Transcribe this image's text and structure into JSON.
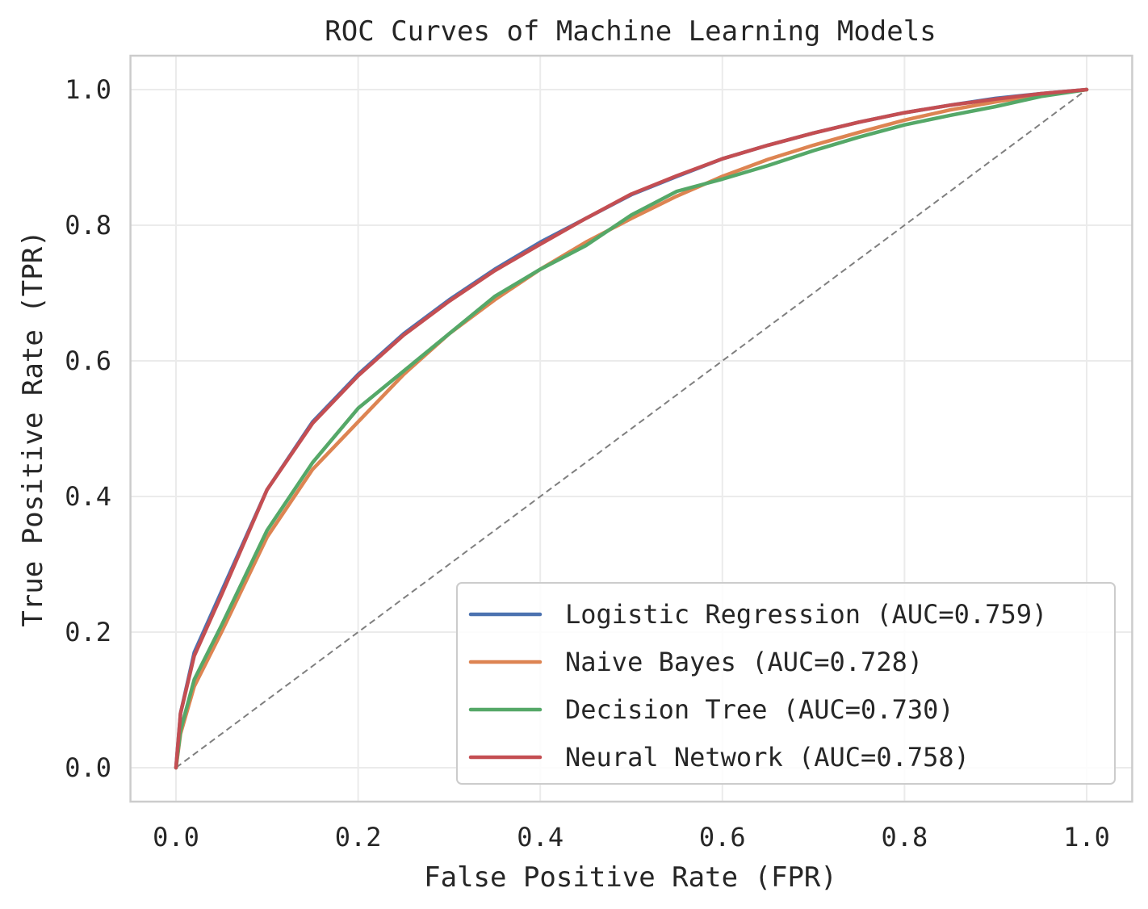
{
  "chart_data": {
    "type": "line",
    "title": "ROC Curves of Machine Learning Models",
    "xlabel": "False Positive Rate (FPR)",
    "ylabel": "True Positive Rate (TPR)",
    "xlim": [
      -0.05,
      1.05
    ],
    "ylim": [
      -0.05,
      1.05
    ],
    "grid": true,
    "legend_position": "bottom-right",
    "xticks": [
      "0.0",
      "0.2",
      "0.4",
      "0.6",
      "0.8",
      "1.0"
    ],
    "yticks": [
      "0.0",
      "0.2",
      "0.4",
      "0.6",
      "0.8",
      "1.0"
    ],
    "x": [
      0.0,
      0.005,
      0.02,
      0.05,
      0.1,
      0.15,
      0.2,
      0.25,
      0.3,
      0.35,
      0.4,
      0.45,
      0.5,
      0.55,
      0.6,
      0.65,
      0.7,
      0.75,
      0.8,
      0.85,
      0.9,
      0.95,
      1.0
    ],
    "series": [
      {
        "name": "Logistic Regression (AUC=0.759)",
        "color": "#4c72b0",
        "values": [
          0.0,
          0.08,
          0.17,
          0.26,
          0.41,
          0.51,
          0.58,
          0.64,
          0.69,
          0.735,
          0.775,
          0.81,
          0.845,
          0.872,
          0.898,
          0.918,
          0.936,
          0.952,
          0.966,
          0.977,
          0.987,
          0.994,
          1.0
        ]
      },
      {
        "name": "Naive Bayes (AUC=0.728)",
        "color": "#dd8452",
        "values": [
          0.0,
          0.05,
          0.12,
          0.2,
          0.34,
          0.44,
          0.51,
          0.58,
          0.64,
          0.69,
          0.735,
          0.775,
          0.81,
          0.843,
          0.872,
          0.897,
          0.918,
          0.937,
          0.955,
          0.97,
          0.982,
          0.992,
          1.0
        ]
      },
      {
        "name": "Decision Tree (AUC=0.730)",
        "color": "#55a868",
        "values": [
          0.0,
          0.055,
          0.13,
          0.21,
          0.35,
          0.45,
          0.53,
          0.585,
          0.64,
          0.695,
          0.735,
          0.77,
          0.815,
          0.85,
          0.868,
          0.888,
          0.91,
          0.93,
          0.948,
          0.962,
          0.975,
          0.99,
          1.0
        ]
      },
      {
        "name": "Neural Network (AUC=0.758)",
        "color": "#c44e52",
        "values": [
          0.0,
          0.08,
          0.165,
          0.255,
          0.41,
          0.508,
          0.578,
          0.638,
          0.688,
          0.733,
          0.772,
          0.81,
          0.846,
          0.873,
          0.898,
          0.918,
          0.936,
          0.952,
          0.966,
          0.977,
          0.986,
          0.994,
          1.0
        ]
      }
    ],
    "reference_line": {
      "name": "chance",
      "x": [
        0,
        1
      ],
      "y": [
        0,
        1
      ],
      "color": "#7f7f7f",
      "style": "dashed"
    }
  }
}
